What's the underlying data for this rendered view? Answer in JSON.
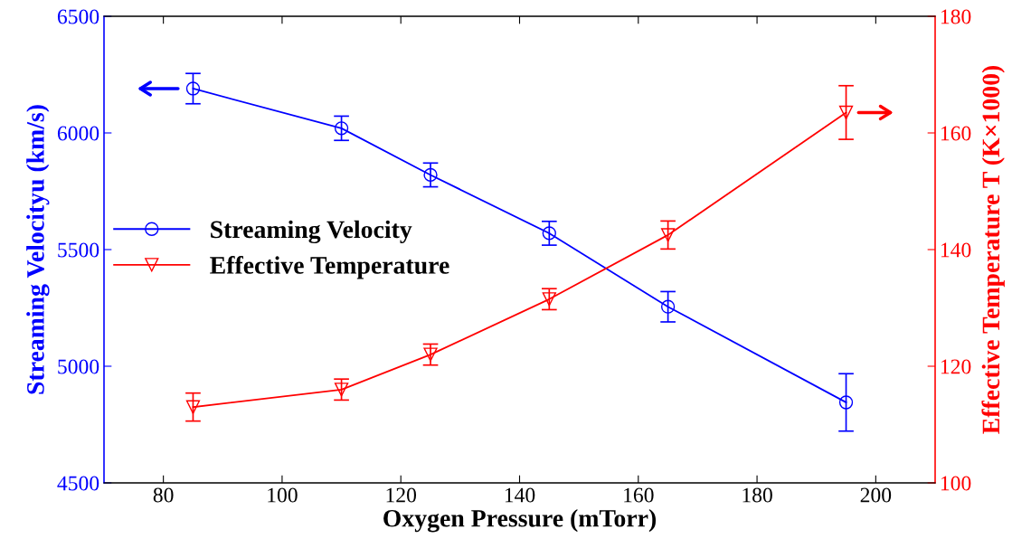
{
  "chart_data": {
    "type": "line",
    "xlabel": "Oxygen Pressure (mTorr)",
    "ylabel": "Streaming Velocityu (km/s)",
    "y2label": "Effective Temperature T (K×1000)",
    "x": [
      85,
      110,
      125,
      145,
      165,
      195
    ],
    "series": [
      {
        "name": "Streaming Velocity",
        "color": "#0000ff",
        "marker": "circle",
        "values": [
          6190,
          6020,
          5820,
          5570,
          5255,
          4845
        ],
        "errors": [
          65,
          52,
          51,
          51,
          65,
          123
        ]
      },
      {
        "name": "Effective Temperature",
        "color": "#ff0000",
        "marker": "triangle",
        "axis": "y2",
        "values": [
          113,
          116,
          122,
          131.5,
          142.5,
          163.5
        ],
        "errors": [
          2.4,
          1.8,
          1.8,
          1.8,
          2.4,
          4.6
        ]
      }
    ],
    "xlim": [
      70,
      210
    ],
    "xticks": [
      80,
      100,
      120,
      140,
      160,
      180,
      200
    ],
    "ylim": [
      4500,
      6500
    ],
    "yticks": [
      4500,
      5000,
      5500,
      6000,
      6500
    ],
    "y2lim": [
      100,
      180
    ],
    "y2ticks": [
      100,
      120,
      140,
      160,
      180
    ],
    "grid": false,
    "legend": "left",
    "line_style": "solid"
  }
}
